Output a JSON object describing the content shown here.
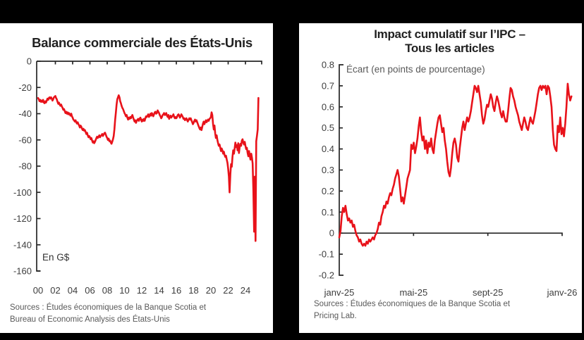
{
  "colors": {
    "background": "#000000",
    "panel": "#ffffff",
    "line_red": "#e8121a",
    "axis": "#262626",
    "tick_label": "#3d3d3d",
    "muted_text": "#595959"
  },
  "chart_data": [
    {
      "type": "line",
      "title": "Balance commerciale des États-Unis",
      "unit_label": "En G$",
      "legend_position": "none",
      "grid": false,
      "x_tick_labels": [
        "00",
        "02",
        "04",
        "06",
        "08",
        "10",
        "12",
        "14",
        "16",
        "18",
        "20",
        "22",
        "24"
      ],
      "y_tick_labels": [
        "0",
        "-20",
        "-40",
        "-60",
        "-80",
        "-100",
        "-120",
        "-140",
        "-160"
      ],
      "y_ticks": [
        0,
        -20,
        -40,
        -60,
        -80,
        -100,
        -120,
        -140,
        -160
      ],
      "ylim": [
        -160,
        0
      ],
      "x_start": "2000-01",
      "x_step": "monthly",
      "source_lines": [
        "Sources : Études économiques de la Banque Scotia et",
        "Bureau of Economic Analysis des États-Unis"
      ],
      "values": [
        -28,
        -29,
        -30.5,
        -29.5,
        -31,
        -30,
        -31,
        -29.5,
        -31.5,
        -32,
        -30.5,
        -31.5,
        -30,
        -28.5,
        -29.5,
        -28,
        -27.5,
        -28.5,
        -27.5,
        -28.5,
        -30,
        -29,
        -27.5,
        -27,
        -26.5,
        -28,
        -29,
        -31,
        -32.5,
        -31.5,
        -33,
        -34,
        -33,
        -34.5,
        -35.5,
        -37,
        -36.5,
        -38,
        -39.5,
        -38.5,
        -40,
        -39,
        -40.5,
        -39.5,
        -40.5,
        -41.5,
        -40,
        -42,
        -43,
        -44.5,
        -45,
        -46,
        -45,
        -46.5,
        -47.5,
        -46.5,
        -48,
        -49,
        -50.5,
        -49,
        -50,
        -51.5,
        -52.5,
        -51.5,
        -53,
        -52.5,
        -54,
        -55.5,
        -54.5,
        -56.5,
        -58,
        -57,
        -58,
        -59.5,
        -58.5,
        -60.5,
        -62,
        -61,
        -62.5,
        -61.5,
        -60,
        -58.5,
        -57.5,
        -58.5,
        -57.5,
        -56.5,
        -58,
        -57,
        -56.5,
        -55.5,
        -57,
        -56,
        -55,
        -54.5,
        -56,
        -57.5,
        -58.5,
        -60,
        -59,
        -61,
        -60.5,
        -62,
        -63,
        -61.5,
        -59.5,
        -57,
        -52,
        -45,
        -39,
        -33,
        -29,
        -27.5,
        -26,
        -27.5,
        -30.5,
        -32,
        -34,
        -35.5,
        -36.5,
        -38,
        -39.5,
        -40.5,
        -42,
        -41,
        -43,
        -44.5,
        -43,
        -44,
        -42.5,
        -43.5,
        -42,
        -41,
        -43,
        -44.5,
        -46,
        -45,
        -47,
        -45.5,
        -44.5,
        -44,
        -45.5,
        -44,
        -43,
        -44.5,
        -46,
        -44.5,
        -45.5,
        -44,
        -45.5,
        -43.5,
        -42,
        -42.5,
        -41.5,
        -40.5,
        -42.5,
        -41.5,
        -40,
        -41.5,
        -39.5,
        -40.5,
        -42,
        -40.5,
        -39,
        -38.5,
        -40,
        -39.5,
        -37.5,
        -38.5,
        -39.5,
        -41,
        -42,
        -43.5,
        -42.5,
        -41,
        -40.5,
        -39.5,
        -41,
        -40.5,
        -39.5,
        -41.5,
        -42.5,
        -41,
        -44,
        -42.5,
        -41.5,
        -43,
        -42,
        -41.5,
        -40.5,
        -42.5,
        -43.5,
        -42.5,
        -43.5,
        -42.5,
        -41,
        -40.5,
        -41.5,
        -43,
        -42,
        -40.5,
        -41.5,
        -42.5,
        -44,
        -43.5,
        -45,
        -44,
        -43.5,
        -45,
        -46,
        -44.5,
        -43.5,
        -44.5,
        -43.5,
        -45,
        -46.5,
        -48,
        -47,
        -45.5,
        -44.5,
        -46,
        -45,
        -46.5,
        -48,
        -49.5,
        -51,
        -52,
        -50.5,
        -52.5,
        -50,
        -47.5,
        -46,
        -48,
        -46.5,
        -45,
        -46.5,
        -45.5,
        -44.5,
        -45.5,
        -44,
        -43.5,
        -42.5,
        -39,
        -41,
        -48,
        -52,
        -49,
        -55,
        -58.5,
        -56.5,
        -60,
        -62.5,
        -64.5,
        -63.5,
        -66,
        -68.5,
        -66.5,
        -68,
        -70.5,
        -69,
        -71.5,
        -73,
        -72,
        -75,
        -77.5,
        -82,
        -88,
        -100,
        -86,
        -78.5,
        -80.5,
        -73,
        -68,
        -70.5,
        -66.5,
        -62,
        -65.5,
        -64,
        -68,
        -62.5,
        -70,
        -65.5,
        -63,
        -64.5,
        -60.5,
        -59.5,
        -62,
        -63.5,
        -61.5,
        -64.5,
        -67,
        -66,
        -70,
        -72.5,
        -68.5,
        -72,
        -75,
        -70.5,
        -73.5,
        -78,
        -98,
        -130,
        -88,
        -137,
        -61,
        -57,
        -52,
        -28
      ]
    },
    {
      "type": "line",
      "title_lines": [
        "Impact cumulatif sur l’IPC –",
        "Tous les articles"
      ],
      "subtitle": "Écart (en points de pourcentage)",
      "legend_position": "none",
      "grid": false,
      "x_tick_labels": [
        "janv-25",
        "mai-25",
        "sept-25",
        "janv-26"
      ],
      "x_tick_months": [
        0,
        4,
        8,
        12
      ],
      "y_tick_labels": [
        "0.8",
        "0.7",
        "0.6",
        "0.5",
        "0.4",
        "0.3",
        "0.2",
        "0.1",
        "0",
        "-0.1",
        "-0.2"
      ],
      "y_ticks": [
        0.8,
        0.7,
        0.6,
        0.5,
        0.4,
        0.3,
        0.2,
        0.1,
        0,
        -0.1,
        -0.2
      ],
      "ylim": [
        -0.2,
        0.8
      ],
      "x_span_months": 12.5,
      "source_lines": [
        "Sources : Études économiques de la Banque Scotia et",
        "Pricing Lab."
      ],
      "values": [
        -0.02,
        0.01,
        0.08,
        0.12,
        0.1,
        0.13,
        0.09,
        0.06,
        0.07,
        0.05,
        0.06,
        0.03,
        0.04,
        0.01,
        -0.01,
        -0.02,
        -0.04,
        -0.03,
        -0.05,
        -0.06,
        -0.05,
        -0.06,
        -0.04,
        -0.05,
        -0.03,
        -0.04,
        -0.03,
        -0.02,
        -0.03,
        -0.01,
        0.0,
        0.02,
        0.05,
        0.04,
        0.08,
        0.1,
        0.13,
        0.12,
        0.15,
        0.14,
        0.17,
        0.19,
        0.18,
        0.21,
        0.23,
        0.26,
        0.28,
        0.3,
        0.27,
        0.21,
        0.15,
        0.17,
        0.14,
        0.18,
        0.22,
        0.26,
        0.28,
        0.3,
        0.42,
        0.4,
        0.43,
        0.38,
        0.41,
        0.45,
        0.51,
        0.55,
        0.48,
        0.44,
        0.46,
        0.4,
        0.44,
        0.38,
        0.43,
        0.41,
        0.45,
        0.4,
        0.38,
        0.44,
        0.48,
        0.52,
        0.55,
        0.56,
        0.52,
        0.48,
        0.5,
        0.44,
        0.4,
        0.34,
        0.29,
        0.27,
        0.31,
        0.38,
        0.43,
        0.45,
        0.42,
        0.36,
        0.34,
        0.4,
        0.45,
        0.5,
        0.53,
        0.49,
        0.52,
        0.55,
        0.53,
        0.55,
        0.58,
        0.62,
        0.66,
        0.7,
        0.69,
        0.67,
        0.7,
        0.66,
        0.62,
        0.56,
        0.52,
        0.54,
        0.58,
        0.61,
        0.6,
        0.63,
        0.66,
        0.64,
        0.6,
        0.58,
        0.62,
        0.65,
        0.63,
        0.6,
        0.57,
        0.55,
        0.58,
        0.55,
        0.53,
        0.53,
        0.58,
        0.64,
        0.69,
        0.68,
        0.65,
        0.63,
        0.6,
        0.58,
        0.56,
        0.53,
        0.51,
        0.49,
        0.52,
        0.55,
        0.53,
        0.5,
        0.49,
        0.52,
        0.55,
        0.53,
        0.52,
        0.55,
        0.58,
        0.62,
        0.66,
        0.69,
        0.7,
        0.68,
        0.7,
        0.69,
        0.7,
        0.66,
        0.7,
        0.69,
        0.65,
        0.6,
        0.49,
        0.42,
        0.4,
        0.39,
        0.51,
        0.48,
        0.55,
        0.47,
        0.5,
        0.46,
        0.52,
        0.6,
        0.71,
        0.66,
        0.63,
        0.65
      ]
    }
  ]
}
